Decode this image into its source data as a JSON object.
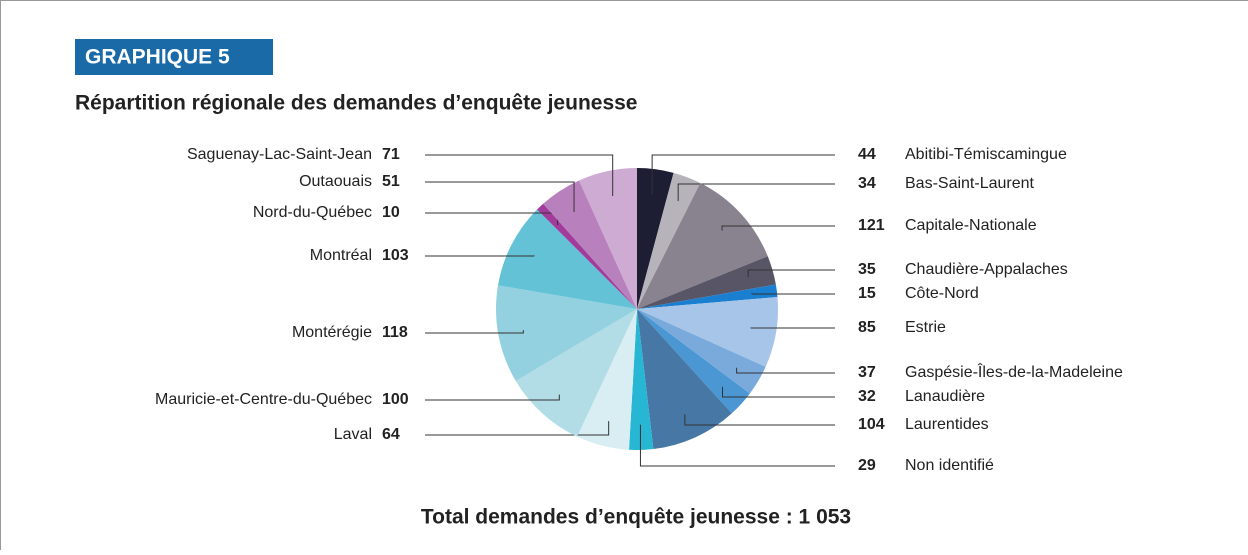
{
  "chart_data": {
    "type": "pie",
    "title": "GRAPHIQUE 5",
    "subtitle": "Répartition régionale des demandes d’enquête jeunesse",
    "footer": "Total demandes d’enquête jeunesse : 1 053",
    "categories": [
      "Abitibi-Témiscamingue",
      "Bas-Saint-Laurent",
      "Capitale-Nationale",
      "Chaudière-Appalaches",
      "Côte-Nord",
      "Estrie",
      "Gaspésie-Îles-de-la-Madeleine",
      "Lanaudière",
      "Laurentides",
      "Non identifié",
      "Laval",
      "Mauricie-et-Centre-du-Québec",
      "Montérégie",
      "Montréal",
      "Nord-du-Québec",
      "Outaouais",
      "Saguenay-Lac-Saint-Jean"
    ],
    "values": [
      44,
      34,
      121,
      35,
      15,
      85,
      37,
      32,
      104,
      29,
      64,
      100,
      118,
      103,
      10,
      51,
      71
    ],
    "colors": [
      "#1d1d33",
      "#b6b4ba",
      "#88838f",
      "#585566",
      "#1a7fd0",
      "#a7c5e8",
      "#7aaadc",
      "#4a97d4",
      "#4677a5",
      "#27b6d3",
      "#d9eef3",
      "#b2dce6",
      "#94d1e0",
      "#64c2d6",
      "#a23b9c",
      "#b880bc",
      "#cdabd3"
    ]
  }
}
